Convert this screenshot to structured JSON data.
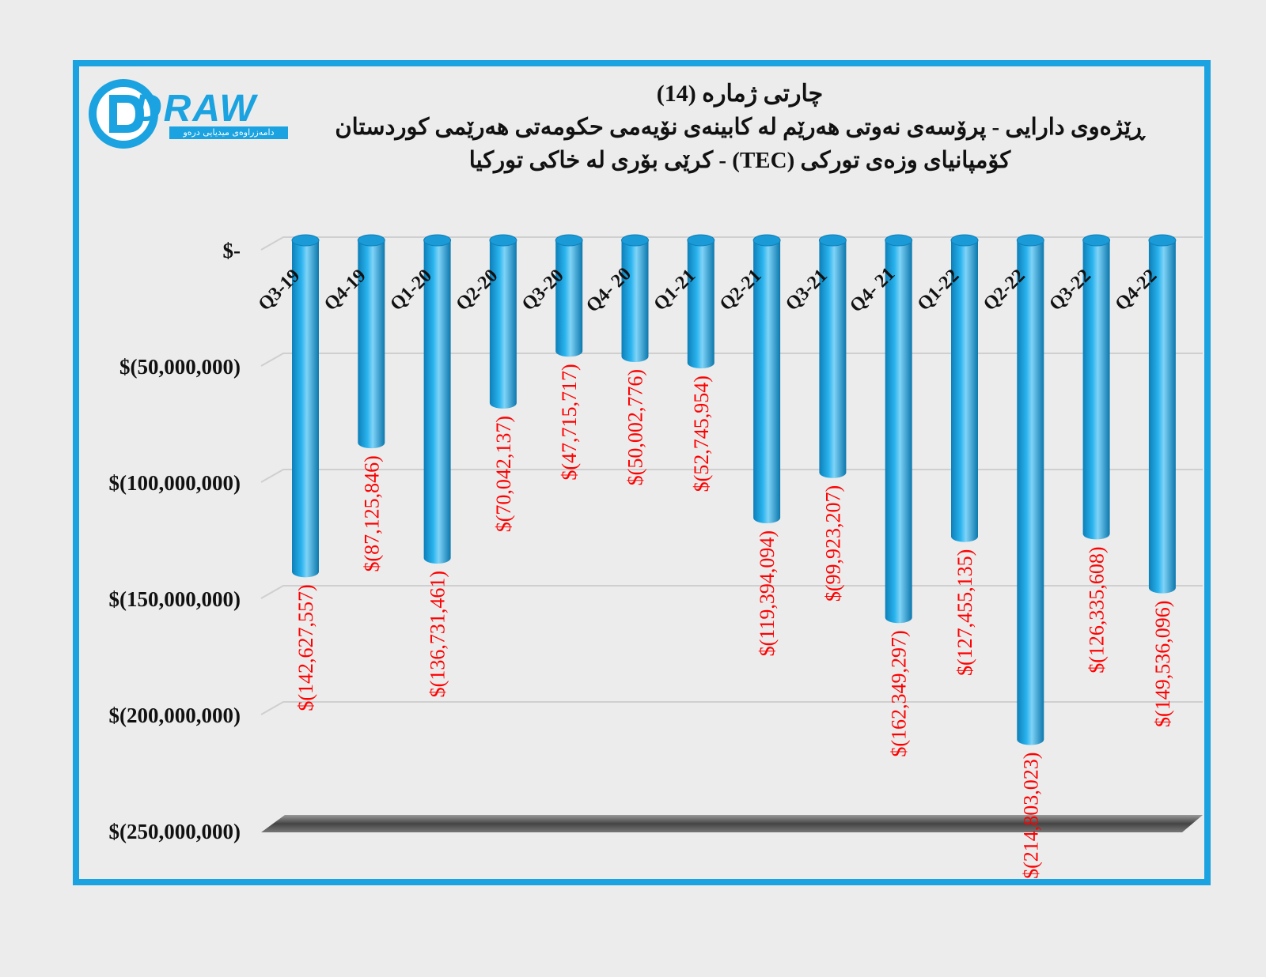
{
  "logo": {
    "wordmark": "DRAW",
    "tagline": "دامەزراوەی میدیایی درەو"
  },
  "title": {
    "line1": "چارتی ژمارە (14)",
    "line2": "ڕێژەوی دارایی - پرۆسەی نەوتی هەرێم لە کابینەی نۆیەمی حکومەتی هەرێمی کوردستان",
    "line3": "کۆمپانیای وزەی تورکی (TEC) - کرێی بۆری لە خاکی تورکیا"
  },
  "colors": {
    "bar": "#1aa3e0",
    "label": "#ff0000",
    "frame": "#1aa3e0",
    "floor": "#555555"
  },
  "chart_data": {
    "type": "bar",
    "orientation": "vertical",
    "style": "3d-cylinder",
    "categories": [
      "Q3-19",
      "Q4-19",
      "Q1-20",
      "Q2-20",
      "Q3-20",
      "Q4- 20",
      "Q1-21",
      "Q2-21",
      "Q3-21",
      "Q4- 21",
      "Q1-22",
      "Q2-22",
      "Q3-22",
      "Q4-22"
    ],
    "values": [
      -142627557,
      -87125846,
      -136731461,
      -70042137,
      -47715717,
      -50002776,
      -52745954,
      -119394094,
      -99923207,
      -162349297,
      -127455135,
      -214803023,
      -126335608,
      -149536096
    ],
    "data_labels": [
      "$(142,627,557)",
      "$(87,125,846)",
      "$(136,731,461)",
      "$(70,042,137)",
      "$(47,715,717)",
      "$(50,002,776)",
      "$(52,745,954)",
      "$(119,394,094)",
      "$(99,923,207)",
      "$(162,349,297)",
      "$(127,455,135)",
      "$(214,803,023)",
      "$(126,335,608)",
      "$(149,536,096)"
    ],
    "ylim": [
      -250000000,
      0
    ],
    "y_ticks": [
      0,
      -50000000,
      -100000000,
      -150000000,
      -200000000,
      -250000000
    ],
    "y_tick_labels": [
      "$-",
      "$(50,000,000)",
      "$(100,000,000)",
      "$(150,000,000)",
      "$(200,000,000)",
      "$(250,000,000)"
    ],
    "grid": true,
    "legend": "none"
  }
}
